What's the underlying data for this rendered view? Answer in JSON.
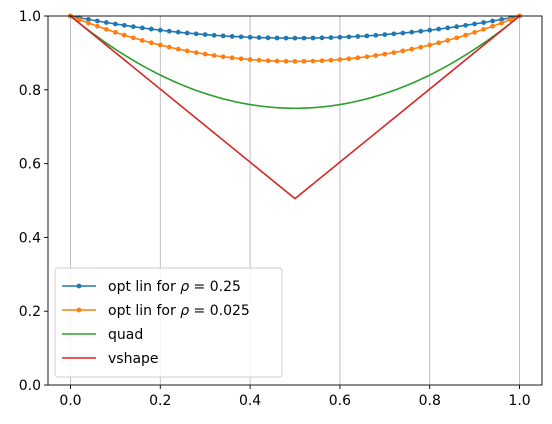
{
  "chart_data": {
    "type": "line",
    "title": "",
    "xlabel": "",
    "ylabel": "",
    "xlim": [
      -0.05,
      1.05
    ],
    "ylim": [
      0.0,
      1.0
    ],
    "xticks": [
      0.0,
      0.2,
      0.4,
      0.6,
      0.8,
      1.0
    ],
    "xtick_labels": [
      "0.0",
      "0.2",
      "0.4",
      "0.6",
      "0.8",
      "1.0"
    ],
    "yticks": [
      0.0,
      0.2,
      0.4,
      0.6,
      0.8,
      1.0
    ],
    "ytick_labels": [
      "0.0",
      "0.2",
      "0.4",
      "0.6",
      "0.8",
      "1.0"
    ],
    "grid": "vertical lines at x ticks",
    "legend_position": "lower-left",
    "series": [
      {
        "name": "opt lin for ρ = 0.25",
        "legend_parts": [
          "opt lin for ",
          "ρ",
          " = 0.25"
        ],
        "color": "#1f77b4",
        "marker": "dot",
        "x_range": [
          0.0,
          1.0
        ],
        "n_points": 51,
        "formula": "1 - 4*(1-m)*x*(1-x)",
        "min_value": 0.94
      },
      {
        "name": "opt lin for ρ = 0.025",
        "legend_parts": [
          "opt lin for ",
          "ρ",
          " = 0.025"
        ],
        "color": "#ff7f0e",
        "marker": "dot",
        "x_range": [
          0.0,
          1.0
        ],
        "n_points": 51,
        "formula": "1 - 4*(1-m)*x*(1-x)",
        "min_value": 0.877
      },
      {
        "name": "quad",
        "color": "#2ca02c",
        "marker": "none",
        "x_range": [
          0.0,
          1.0
        ],
        "formula": "1 - x + x^2",
        "min_value": 0.75
      },
      {
        "name": "vshape",
        "color": "#d62728",
        "marker": "none",
        "x": [
          0.0,
          0.5,
          1.0
        ],
        "y": [
          1.0,
          0.505,
          1.0
        ]
      }
    ]
  }
}
